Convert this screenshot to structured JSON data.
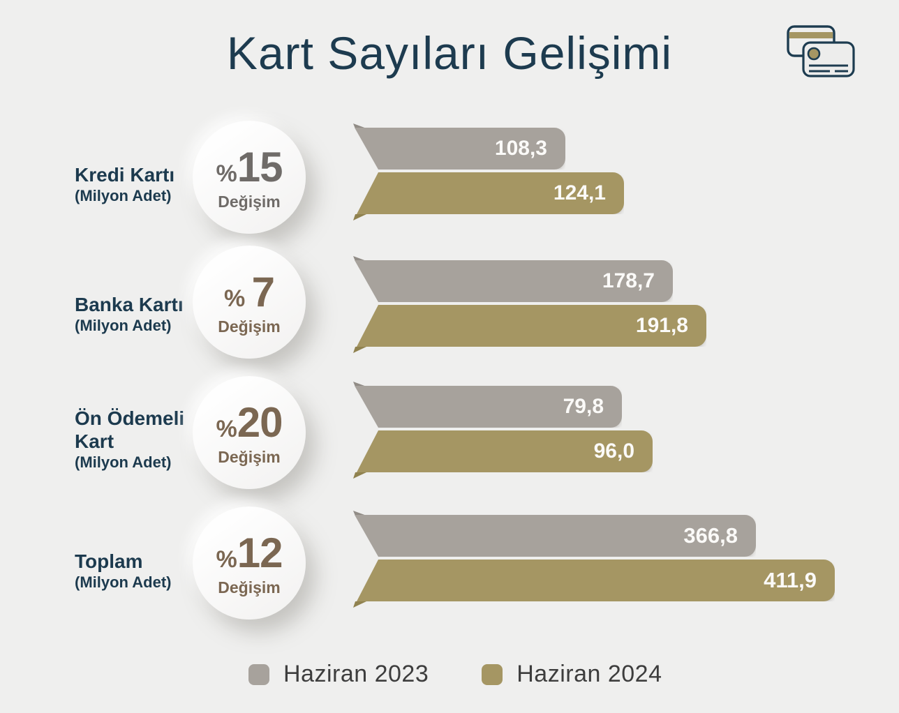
{
  "title": "Kart Sayıları Gelişimi",
  "colors": {
    "background": "#efefee",
    "title": "#1d3b4f",
    "label": "#1c3a4e",
    "bar_2023": "#a7a29c",
    "bar_2024": "#a59663",
    "bar_2023_tip": "#918c86",
    "bar_2024_tip": "#90824f",
    "value_text": "#fbfaf8"
  },
  "rows": [
    {
      "name": "Kredi Kartı",
      "unit": "(Milyon Adet)",
      "pct_prefix": "%",
      "pct": "15",
      "pct_label": "Değişim",
      "accent": "#6f6b68",
      "v2023": "108,3",
      "v2024": "124,1",
      "w2023": 304,
      "w2024": 388
    },
    {
      "name": "Banka Kartı",
      "unit": "(Milyon Adet)",
      "pct_prefix": "% ",
      "pct": "7",
      "pct_label": "Değişim",
      "accent": "#7b6752",
      "v2023": "178,7",
      "v2024": "191,8",
      "w2023": 458,
      "w2024": 506
    },
    {
      "name": "Ön Ödemeli Kart",
      "unit": "(Milyon Adet)",
      "pct_prefix": "%",
      "pct": "20",
      "pct_label": "Değişim",
      "accent": "#7b6752",
      "v2023": "79,8",
      "v2024": "96,0",
      "w2023": 385,
      "w2024": 429
    },
    {
      "name": "Toplam",
      "unit": "(Milyon Adet)",
      "pct_prefix": "%",
      "pct": "12",
      "pct_label": "Değişim",
      "accent": "#7b6752",
      "v2023": "366,8",
      "v2024": "411,9",
      "w2023": 577,
      "w2024": 690
    }
  ],
  "legend": {
    "items": [
      {
        "label": "Haziran 2023",
        "color": "#a7a29c"
      },
      {
        "label": "Haziran 2024",
        "color": "#a59663"
      }
    ]
  },
  "chart_data": {
    "type": "bar",
    "orientation": "horizontal",
    "title": "Kart Sayıları Gelişimi",
    "unit": "Milyon Adet",
    "categories": [
      "Kredi Kartı",
      "Banka Kartı",
      "Ön Ödemeli Kart",
      "Toplam"
    ],
    "series": [
      {
        "name": "Haziran 2023",
        "values": [
          108.3,
          178.7,
          79.8,
          366.8
        ],
        "color": "#a7a29c"
      },
      {
        "name": "Haziran 2024",
        "values": [
          124.1,
          191.8,
          96.0,
          411.9
        ],
        "color": "#a59663"
      }
    ],
    "change_percent": [
      15,
      7,
      20,
      12
    ],
    "data_labels": "inside-end, comma decimal",
    "legend_position": "bottom",
    "grid": false,
    "axes_visible": false
  }
}
